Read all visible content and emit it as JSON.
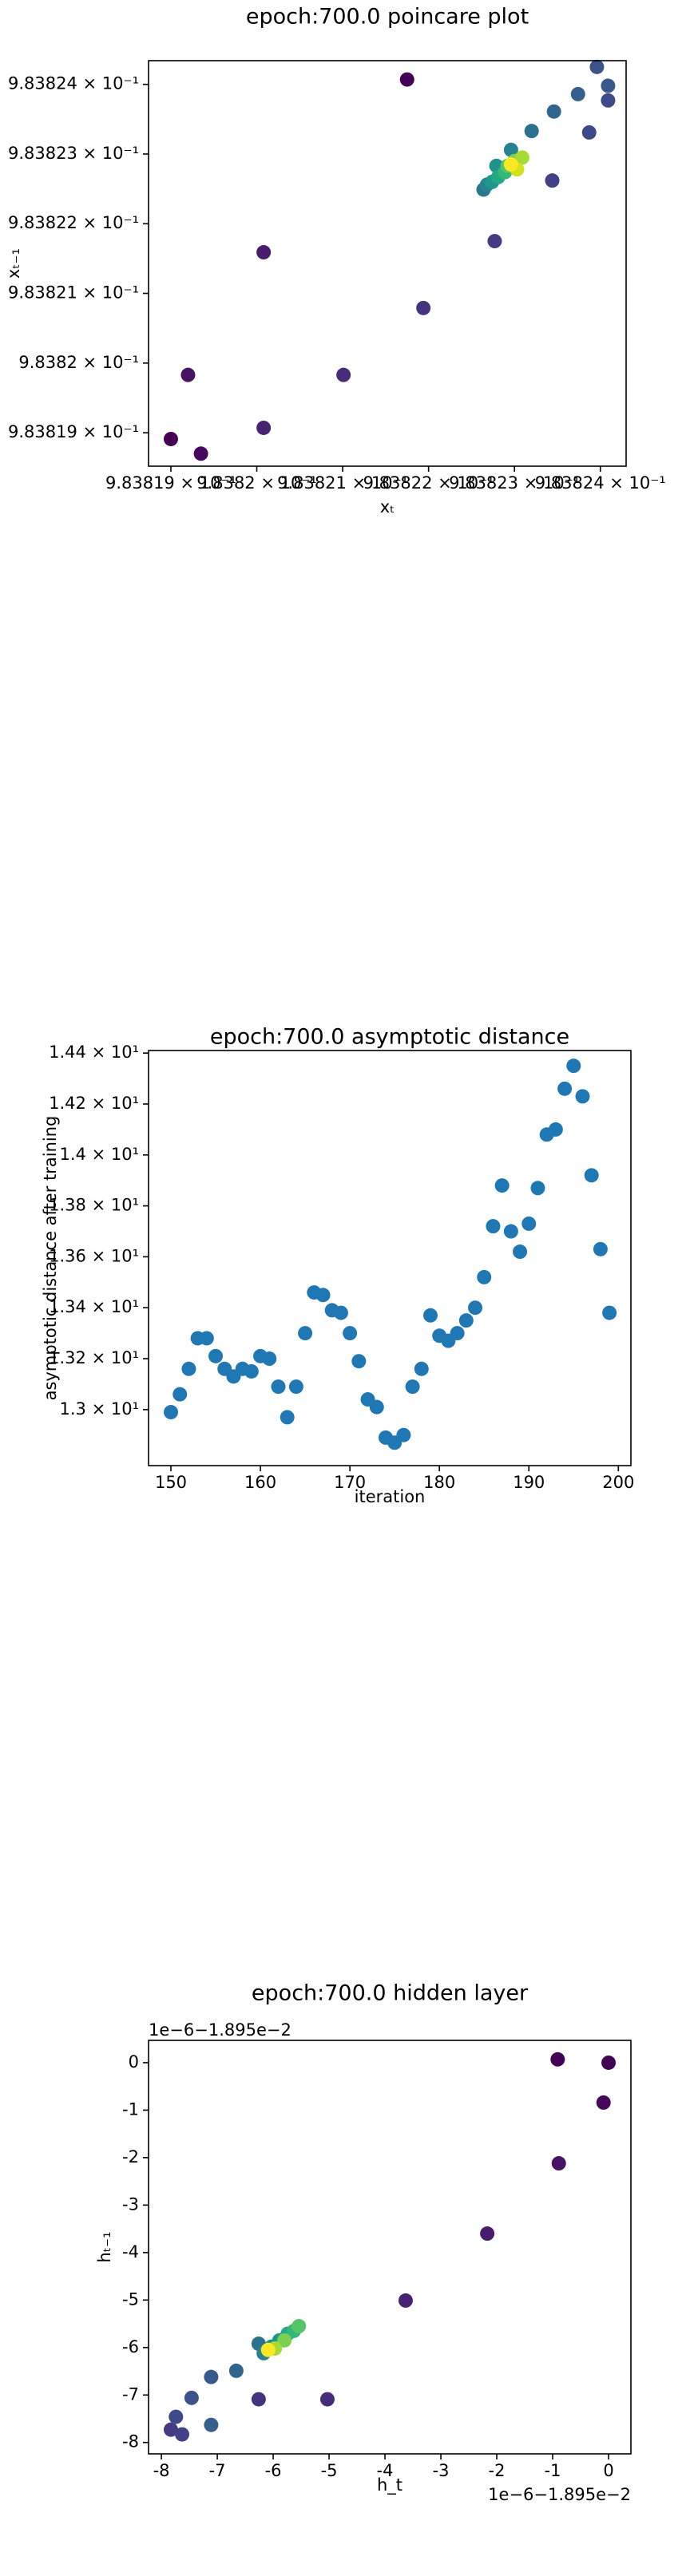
{
  "chart_data": [
    {
      "type": "scatter",
      "title": "epoch:700.0 poincare plot",
      "xlabel": "xₜ",
      "ylabel": "xₜ₋₁",
      "xlim": [
        0.98381874,
        0.9838243
      ],
      "ylim": [
        0.98381852,
        0.98382434
      ],
      "xticks": [
        {
          "value": 0.983819,
          "label": "9.83819 × 10⁻¹"
        },
        {
          "value": 0.98382,
          "label": "9.8382 × 10⁻¹"
        },
        {
          "value": 0.983821,
          "label": "9.83821 × 10⁻¹"
        },
        {
          "value": 0.983822,
          "label": "9.83822 × 10⁻¹"
        },
        {
          "value": 0.983823,
          "label": "9.83823 × 10⁻¹"
        },
        {
          "value": 0.983824,
          "label": "9.83824 × 10⁻¹"
        }
      ],
      "yticks": [
        {
          "value": 0.983819,
          "label": "9.83819 × 10⁻¹"
        },
        {
          "value": 0.98382,
          "label": "9.8382 × 10⁻¹"
        },
        {
          "value": 0.983821,
          "label": "9.83821 × 10⁻¹"
        },
        {
          "value": 0.983822,
          "label": "9.83822 × 10⁻¹"
        },
        {
          "value": 0.983823,
          "label": "9.83823 × 10⁻¹"
        },
        {
          "value": 0.983824,
          "label": "9.83824 × 10⁻¹"
        }
      ],
      "x": [
        0.98382175,
        0.983819,
        0.98381935,
        0.9838192,
        0.98382008,
        0.98382008,
        0.98382101,
        0.98382194,
        0.98382277,
        0.98382344,
        0.98382387,
        0.98382396,
        0.98382409,
        0.98382409,
        0.98382374,
        0.98382346,
        0.9838232,
        0.98382296,
        0.98382279,
        0.98382264,
        0.98382268,
        0.98382274,
        0.98382281,
        0.98382289,
        0.98382292,
        0.983823,
        0.98382309,
        0.98382303,
        0.98382296
      ],
      "values": [
        0.98382407,
        0.98381891,
        0.9838187,
        0.98381983,
        0.98382159,
        0.98381907,
        0.98381983,
        0.98382079,
        0.98382175,
        0.98382262,
        0.98382331,
        0.98382425,
        0.98382398,
        0.98382377,
        0.98382386,
        0.98382361,
        0.98382333,
        0.98382306,
        0.98382283,
        0.98382249,
        0.98382256,
        0.9838226,
        0.98382267,
        0.98382274,
        0.98382283,
        0.9838229,
        0.98382295,
        0.98382278,
        0.98382285
      ],
      "colors": [
        "#440154",
        "#440154",
        "#46085c",
        "#471365",
        "#481b6d",
        "#482374",
        "#472c7a",
        "#46337f",
        "#443b84",
        "#424086",
        "#3e4989",
        "#3b528b",
        "#38598c",
        "#3e4a89",
        "#35608d",
        "#32658e",
        "#2c728e",
        "#26828e",
        "#21918c",
        "#2a788e",
        "#25848e",
        "#1f988b",
        "#22a884",
        "#35b779",
        "#54c568",
        "#7ad151",
        "#a5db36",
        "#d2e21b",
        "#fde725"
      ]
    },
    {
      "type": "scatter",
      "title": "epoch:700.0 asymptotic distance",
      "xlabel": "iteration",
      "ylabel": "asymptotic distance after training",
      "xlim": [
        147.5,
        201.4
      ],
      "ylim": [
        12.78,
        14.41
      ],
      "xticks": [
        150,
        160,
        170,
        180,
        190,
        200
      ],
      "yticks": [
        {
          "value": 13.0,
          "label": "1.3 × 10¹"
        },
        {
          "value": 13.2,
          "label": "1.32 × 10¹"
        },
        {
          "value": 13.4,
          "label": "1.34 × 10¹"
        },
        {
          "value": 13.6,
          "label": "1.36 × 10¹"
        },
        {
          "value": 13.8,
          "label": "1.38 × 10¹"
        },
        {
          "value": 14.0,
          "label": "1.4 × 10¹"
        },
        {
          "value": 14.2,
          "label": "1.42 × 10¹"
        },
        {
          "value": 14.4,
          "label": "1.44 × 10¹"
        }
      ],
      "x": [
        150,
        151,
        152,
        153,
        154,
        155,
        156,
        157,
        158,
        159,
        160,
        161,
        162,
        163,
        164,
        165,
        166,
        167,
        168,
        169,
        170,
        171,
        172,
        173,
        174,
        175,
        176,
        177,
        178,
        179,
        180,
        181,
        182,
        183,
        184,
        185,
        186,
        187,
        188,
        189,
        190,
        191,
        192,
        193,
        194,
        195,
        196,
        197,
        198,
        199
      ],
      "values": [
        12.99,
        13.06,
        13.16,
        13.28,
        13.28,
        13.21,
        13.16,
        13.13,
        13.16,
        13.15,
        13.21,
        13.2,
        13.09,
        12.97,
        13.09,
        13.3,
        13.46,
        13.45,
        13.39,
        13.38,
        13.3,
        13.19,
        13.04,
        13.01,
        12.89,
        12.87,
        12.9,
        13.09,
        13.16,
        13.37,
        13.29,
        13.27,
        13.3,
        13.35,
        13.4,
        13.52,
        13.72,
        13.88,
        13.7,
        13.62,
        13.73,
        13.87,
        14.08,
        14.1,
        14.26,
        14.35,
        14.23,
        13.92,
        13.63,
        13.38
      ],
      "color": "#1f77b4"
    },
    {
      "type": "scatter",
      "title": "epoch:700.0 hidden layer",
      "xlabel": "h_t",
      "ylabel": "hₜ₋₁",
      "offset_text_x": "1e−6−1.895e−2",
      "offset_text_y": "1e−6−1.895e−2",
      "xlim": [
        -8.23,
        0.4
      ],
      "ylim": [
        -8.24,
        0.47
      ],
      "xticks": [
        -8,
        -7,
        -6,
        -5,
        -4,
        -3,
        -2,
        -1,
        0
      ],
      "yticks": [
        -8,
        -7,
        -6,
        -5,
        -4,
        -3,
        -2,
        -1,
        0
      ],
      "x": [
        -0.91,
        0,
        -0.09,
        -0.89,
        -2.17,
        -3.63,
        -5.03,
        -6.26,
        -7.83,
        -7.63,
        -7.74,
        -7.46,
        -7.11,
        -7.11,
        -6.66,
        -6.26,
        -6.17,
        -6.03,
        -5.89,
        -5.74,
        -5.63,
        -5.54,
        -5.8,
        -5.97,
        -6.09
      ],
      "values": [
        0.07,
        0,
        -0.84,
        -2.12,
        -3.6,
        -5.01,
        -7.09,
        -7.09,
        -7.73,
        -7.83,
        -7.46,
        -7.06,
        -6.62,
        -7.63,
        -6.49,
        -5.92,
        -6.12,
        -5.98,
        -5.85,
        -5.71,
        -5.65,
        -5.55,
        -5.85,
        -6.02,
        -6.05
      ],
      "colors": [
        "#440154",
        "#440154",
        "#46085c",
        "#471365",
        "#481b6d",
        "#482374",
        "#472c7a",
        "#46337f",
        "#443b84",
        "#424086",
        "#3e4989",
        "#3b528b",
        "#38598c",
        "#35608d",
        "#32658e",
        "#2c728e",
        "#26828e",
        "#21918c",
        "#1f988b",
        "#22a884",
        "#35b779",
        "#54c568",
        "#7ad151",
        "#a5db36",
        "#fde725"
      ]
    }
  ]
}
